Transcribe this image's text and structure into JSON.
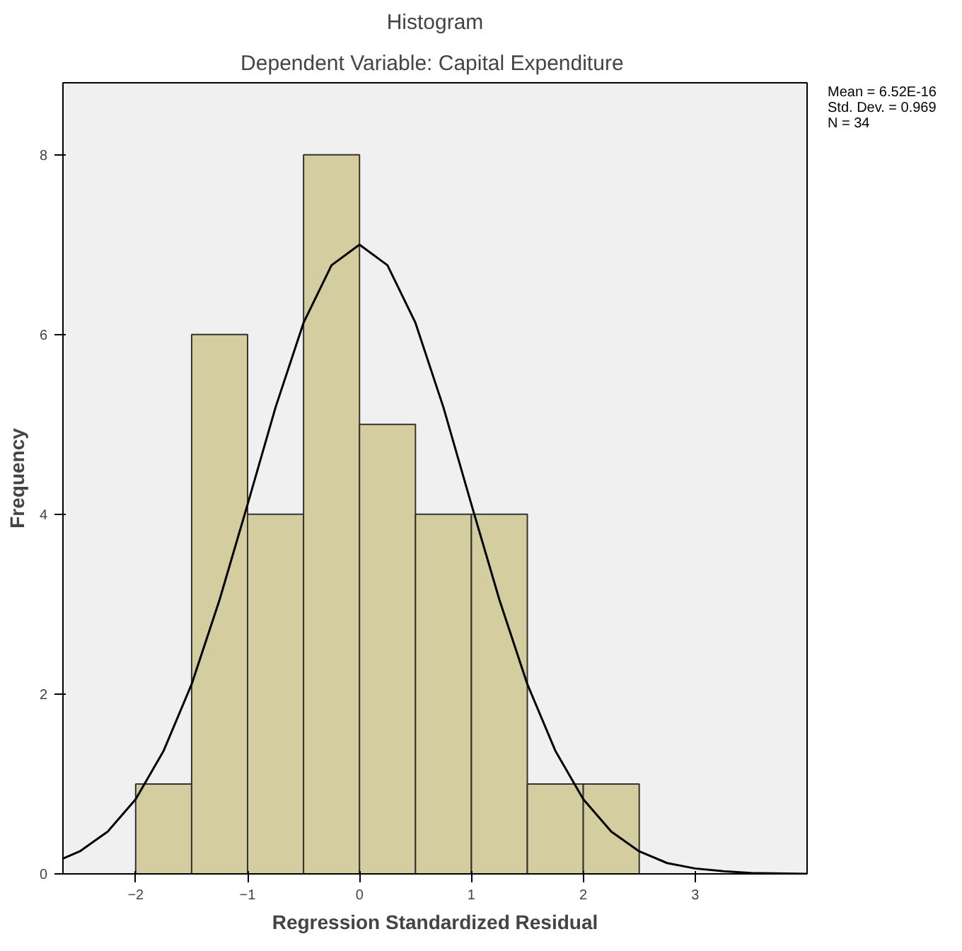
{
  "chart_data": {
    "type": "histogram",
    "title": "Histogram",
    "subtitle": "Dependent Variable: Capital  Expenditure",
    "xlabel": "Regression Standardized Residual",
    "ylabel": "Frequency",
    "bins": [
      -2,
      -1.5,
      -1,
      -0.5,
      0,
      0.5,
      1,
      1.5,
      2,
      2.5
    ],
    "values": [
      1,
      6,
      4,
      8,
      5,
      4,
      4,
      1,
      1
    ],
    "color": "#d3cd9f",
    "series": [
      {
        "type": "line",
        "color": "#000000",
        "x": [
          -2.65,
          -2.5,
          -2.25,
          -2,
          -1.75,
          -1.5,
          -1.25,
          -1,
          -0.75,
          -0.5,
          -0.25,
          0,
          0.25,
          0.5,
          0.75,
          1,
          1.25,
          1.5,
          1.75,
          2,
          2.25,
          2.5,
          2.75,
          3,
          3.25,
          3.5,
          4
        ],
        "values": [
          0.17,
          0.25,
          0.47,
          0.83,
          1.37,
          2.11,
          3.05,
          4.11,
          5.19,
          6.13,
          6.77,
          7.0,
          6.77,
          6.13,
          5.19,
          4.11,
          3.05,
          2.11,
          1.37,
          0.83,
          0.47,
          0.25,
          0.12,
          0.06,
          0.03,
          0.01,
          0
        ]
      }
    ],
    "xlim": [
      -2.65,
      4.0
    ],
    "ylim": [
      0,
      8.8
    ],
    "xticks": [
      -2,
      -1,
      0,
      1,
      2,
      3
    ],
    "yticks": [
      0,
      2,
      4,
      6,
      8
    ],
    "grid": false,
    "annotations": [
      "Mean = 6.52E-16",
      "Std. Dev. = 0.969",
      "N = 34"
    ]
  }
}
